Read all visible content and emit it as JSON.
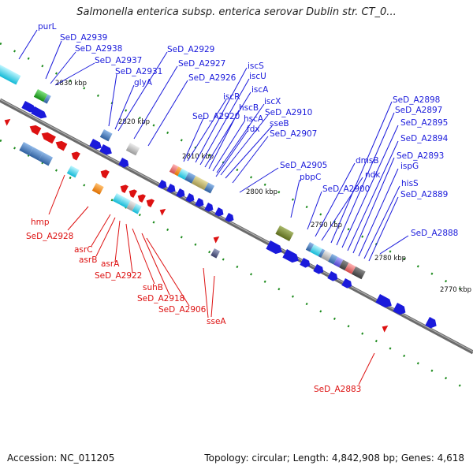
{
  "title": "Salmonella enterica subsp. enterica serovar Dublin str. CT_0...",
  "accession": "Accession: NC_011205",
  "summary": "Topology: circular; Length: 4,842,908 bp; Genes: 4,618",
  "colors": {
    "forward": "#1a1adb",
    "reverse": "#dd1111",
    "axis": "#777777",
    "tick": "#1b8a1b"
  },
  "kbp_labels": [
    "2830 kbp",
    "2820 kbp",
    "2810 kbp",
    "2800 kbp",
    "2790 kbp",
    "2780 kbp",
    "2770 kbp"
  ],
  "forward_genes": [
    "purL",
    "SeD_A2939",
    "SeD_A2938",
    "SeD_A2937",
    "SeD_A2931",
    "glyA",
    "SeD_A2929",
    "SeD_A2927",
    "SeD_A2926",
    "iscS",
    "iscU",
    "iscA",
    "iscR",
    "hscB",
    "hscA",
    "iscX",
    "SeD_A2910",
    "sseB",
    "fdx",
    "SeD_A2907",
    "SeD_A2920",
    "SeD_A2905",
    "pbpC",
    "SeD_A2900",
    "dmsB",
    "ndk",
    "SeD_A2898",
    "SeD_A2897",
    "SeD_A2895",
    "SeD_A2894",
    "SeD_A2893",
    "ispG",
    "hisS",
    "SeD_A2889",
    "SeD_A2888"
  ],
  "reverse_genes": [
    "hmp",
    "SeD_A2928",
    "asrC",
    "asrB",
    "asrA",
    "SeD_A2922",
    "suhB",
    "SeD_A2918",
    "SeD_A2906",
    "sseA",
    "SeD_A2883"
  ]
}
